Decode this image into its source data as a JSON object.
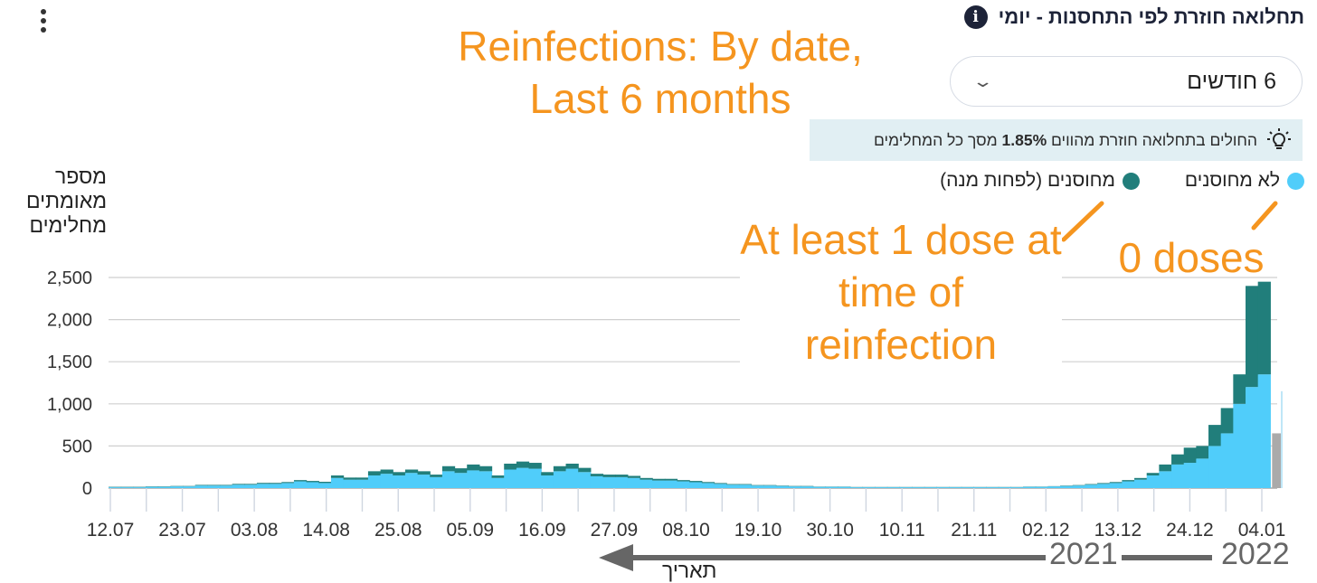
{
  "header": {
    "title": "תחלואה חוזרת לפי התחסנות - יומי",
    "info_icon": "info-icon",
    "menu_icon": "more-vertical-icon"
  },
  "dropdown": {
    "value": "6 חודשים",
    "icon": "chevron-down-icon"
  },
  "insight": {
    "icon": "lightbulb-icon",
    "text_before": "החולים בתחלואה חוזרת מהווים ",
    "text_bold": "1.85%",
    "text_after": " מסך כל המחלימים"
  },
  "legend": [
    {
      "label": "לא מחוסנים",
      "color": "#50cdfa"
    },
    {
      "label": "מחוסנים (לפחות מנה)",
      "color": "#217e7b"
    }
  ],
  "annotations": {
    "title": "Reinfections: By date, Last 6 months",
    "dose1": "At least 1 dose at time of reinfection",
    "dose0": "0 doses",
    "year_2021": "2021",
    "year_2022": "2022",
    "date_word": "תאריך",
    "color": "#f5951f"
  },
  "chart_data": {
    "type": "bar",
    "stacked": true,
    "ylabel": "מספר מאומתים מחלימים",
    "xlabel": "תאריך",
    "ylim": [
      0,
      2500
    ],
    "yticks": [
      "0",
      "500",
      "1,000",
      "1,500",
      "2,000",
      "2,500"
    ],
    "grid": true,
    "xticks": [
      "12.07",
      "23.07",
      "03.08",
      "14.08",
      "25.08",
      "05.09",
      "16.09",
      "27.09",
      "08.10",
      "19.10",
      "30.10",
      "10.11",
      "21.11",
      "02.12",
      "13.12",
      "24.12",
      "04.01"
    ],
    "x_start": "12.07",
    "bar_step_days": 3,
    "series": [
      {
        "name": "לא מחוסנים",
        "color": "#50cdfa",
        "values": [
          10,
          10,
          10,
          15,
          15,
          20,
          20,
          30,
          30,
          30,
          40,
          40,
          50,
          50,
          60,
          80,
          70,
          60,
          120,
          100,
          100,
          150,
          170,
          150,
          180,
          160,
          130,
          200,
          180,
          210,
          200,
          120,
          220,
          240,
          230,
          150,
          200,
          230,
          190,
          140,
          130,
          130,
          120,
          100,
          90,
          90,
          80,
          70,
          60,
          50,
          40,
          40,
          30,
          30,
          25,
          20,
          20,
          15,
          15,
          15,
          10,
          10,
          10,
          10,
          10,
          10,
          10,
          10,
          10,
          10,
          10,
          10,
          10,
          10,
          15,
          15,
          20,
          25,
          30,
          40,
          50,
          60,
          80,
          100,
          150,
          200,
          280,
          300,
          350,
          500,
          650,
          1000,
          1200,
          1350
        ]
      },
      {
        "name": "מחוסנים (לפחות מנה)",
        "color": "#217e7b",
        "values": [
          5,
          5,
          5,
          5,
          5,
          5,
          5,
          8,
          8,
          8,
          10,
          10,
          12,
          12,
          12,
          15,
          15,
          15,
          30,
          25,
          25,
          50,
          50,
          40,
          40,
          40,
          30,
          60,
          55,
          70,
          60,
          30,
          70,
          75,
          70,
          40,
          60,
          60,
          50,
          30,
          30,
          30,
          25,
          20,
          20,
          20,
          15,
          15,
          12,
          10,
          8,
          8,
          6,
          6,
          5,
          5,
          5,
          3,
          3,
          3,
          3,
          3,
          3,
          3,
          3,
          3,
          3,
          3,
          3,
          3,
          3,
          3,
          3,
          3,
          3,
          3,
          3,
          5,
          6,
          8,
          10,
          12,
          15,
          20,
          30,
          80,
          120,
          180,
          150,
          250,
          300,
          350,
          1200,
          1100
        ]
      },
      {
        "name": "",
        "color": "#aaaaaa",
        "values_partial": [
          {
            "index": 94,
            "vulnerable": 0,
            "vaccinated": 0,
            "pending": 650
          }
        ]
      }
    ]
  }
}
